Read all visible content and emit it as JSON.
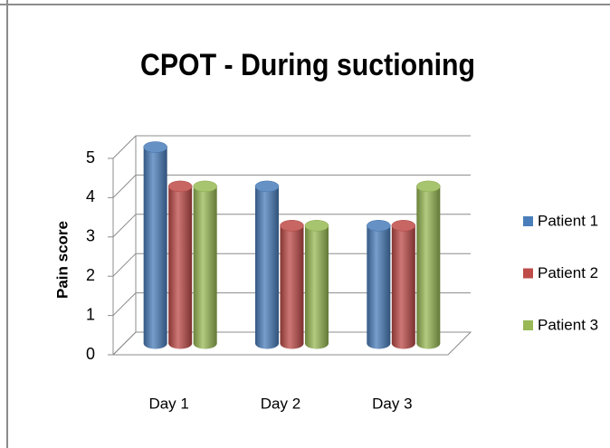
{
  "chart_data": {
    "type": "bar3d",
    "title": "CPOT - During suctioning",
    "y_label": "Pain score",
    "categories": [
      "Day 1",
      "Day 2",
      "Day 3"
    ],
    "series": [
      {
        "name": "Patient 1",
        "color": "#4a7ebb",
        "values": [
          5,
          4,
          3
        ]
      },
      {
        "name": "Patient 2",
        "color": "#be4b48",
        "values": [
          4,
          3,
          3
        ]
      },
      {
        "name": "Patient 3",
        "color": "#98b954",
        "values": [
          4,
          3,
          4
        ]
      }
    ],
    "ylim": [
      0,
      5
    ],
    "yticks": [
      0,
      1,
      2,
      3,
      4,
      5
    ],
    "grid": true,
    "legend": "right"
  }
}
